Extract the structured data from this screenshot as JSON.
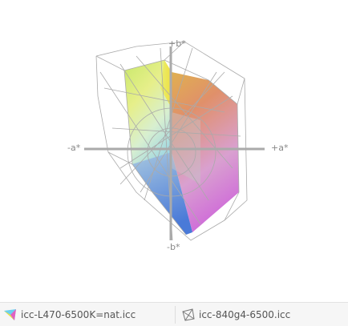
{
  "axes": {
    "plus_b": "+b*",
    "minus_b": "-b*",
    "minus_a": "-a*",
    "plus_a": "+a*"
  },
  "legend": {
    "items": [
      {
        "label": "icc-L470-6500K=nat.icc"
      },
      {
        "label": "icc-840g4-6500.icc"
      }
    ]
  }
}
